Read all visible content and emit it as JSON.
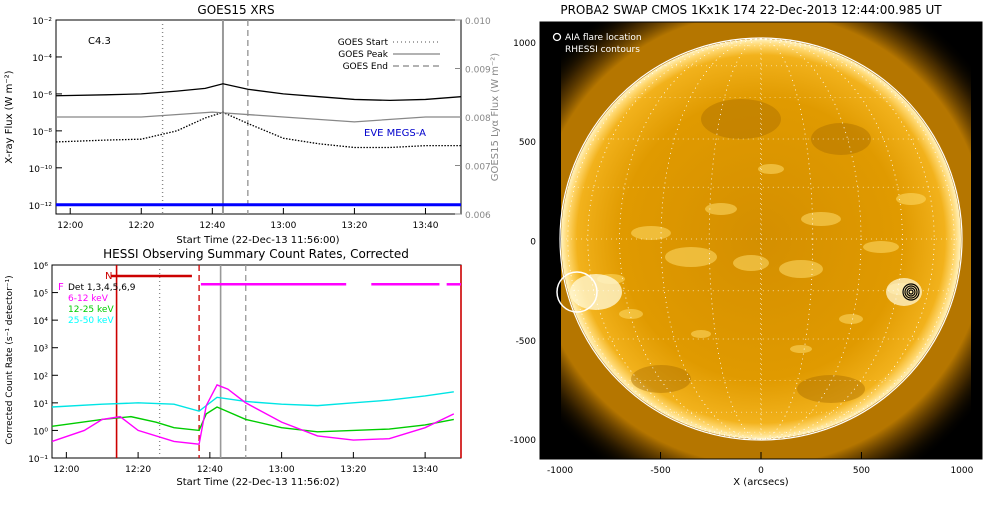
{
  "chart_data": [
    {
      "type": "line",
      "title": "GOES15 XRS",
      "xlabel": "Start Time (22-Dec-13 11:56:00)",
      "ylabel": "X-ray Flux (W m⁻²)",
      "ylabel2": "GOES15 Lyα Flux (W m⁻²)",
      "annotation": "C4.3",
      "x_ticks": [
        "12:00",
        "12:20",
        "12:40",
        "13:00",
        "13:20",
        "13:40"
      ],
      "y_ticks": [
        "10⁻²",
        "10⁻⁴",
        "10⁻⁶",
        "10⁻⁸",
        "10⁻¹⁰",
        "10⁻¹²"
      ],
      "y2_ticks": [
        "0.010",
        "0.009",
        "0.008",
        "0.007",
        "0.006"
      ],
      "x_range_minutes_after_1200": [
        -4,
        110
      ],
      "y_log_range": [
        -12.5,
        -2
      ],
      "y2_range": [
        0.006,
        0.01
      ],
      "legend_placement": "top-right",
      "legend": [
        {
          "label": "GOES Start",
          "style": "dotted",
          "color": "#888888",
          "time": "12:26"
        },
        {
          "label": "GOES Peak",
          "style": "solid",
          "color": "#999999",
          "time": "12:43"
        },
        {
          "label": "GOES End",
          "style": "dashed",
          "color": "#999999",
          "time": "12:50"
        }
      ],
      "series_label_eve": "EVE MEGS-A",
      "series": [
        {
          "color": "#000000",
          "x": [
            -4,
            10,
            20,
            30,
            38,
            43,
            50,
            60,
            70,
            80,
            90,
            100,
            110
          ],
          "log_y": [
            -6.1,
            -6.05,
            -6.0,
            -5.85,
            -5.7,
            -5.45,
            -5.75,
            -6.0,
            -6.15,
            -6.3,
            -6.35,
            -6.3,
            -6.15
          ]
        },
        {
          "color": "#000000",
          "dotted": true,
          "x": [
            -4,
            10,
            20,
            30,
            38,
            43,
            50,
            60,
            70,
            80,
            90,
            100,
            110
          ],
          "log_y": [
            -8.6,
            -8.5,
            -8.45,
            -8.0,
            -7.3,
            -7.0,
            -7.6,
            -8.4,
            -8.7,
            -8.9,
            -8.9,
            -8.8,
            -8.8
          ]
        },
        {
          "color": "#888888",
          "x": [
            -4,
            20,
            40,
            60,
            80,
            100,
            110
          ],
          "y2": [
            0.008,
            0.008,
            0.0081,
            0.008,
            0.0079,
            0.008,
            0.008
          ]
        },
        {
          "color": "#0000ff",
          "x": [
            -4,
            110
          ],
          "log_y": [
            -12,
            -12
          ]
        }
      ]
    },
    {
      "type": "line",
      "title": "HESSI Observing Summary Count Rates, Corrected",
      "xlabel": "Start Time (22-Dec-13 11:56:02)",
      "ylabel": "Corrected Count Rate (s⁻¹ detector⁻¹)",
      "x_ticks": [
        "12:00",
        "12:20",
        "12:40",
        "13:00",
        "13:20",
        "13:40"
      ],
      "y_ticks": [
        "10⁶",
        "10⁵",
        "10⁴",
        "10³",
        "10²",
        "10¹",
        "10⁰",
        "10⁻¹"
      ],
      "x_range_minutes_after_1200": [
        -4,
        110
      ],
      "y_log_range": [
        -1,
        6
      ],
      "flags": {
        "F_label": "F",
        "N_label": "N"
      },
      "legend": [
        {
          "label": "Det 1,3,4,5,6,9",
          "color": "#000000"
        },
        {
          "label": "6-12 keV",
          "color": "#ff00ff"
        },
        {
          "label": "12-25 keV",
          "color": "#00cc00"
        },
        {
          "label": "25-50 keV",
          "color": "#00ffff"
        }
      ],
      "series": [
        {
          "name": "25-50 keV",
          "color": "#00e5e5",
          "x": [
            -4,
            10,
            20,
            30,
            37,
            42,
            50,
            60,
            70,
            80,
            90,
            100,
            108
          ],
          "log_y": [
            0.85,
            0.95,
            1.0,
            0.95,
            0.7,
            1.2,
            1.05,
            0.95,
            0.9,
            1.0,
            1.1,
            1.25,
            1.4
          ]
        },
        {
          "name": "12-25 keV",
          "color": "#00cc00",
          "x": [
            -4,
            10,
            18,
            25,
            30,
            37,
            39,
            42,
            50,
            60,
            70,
            80,
            90,
            100,
            108
          ],
          "log_y": [
            0.15,
            0.4,
            0.5,
            0.3,
            0.1,
            0.0,
            0.6,
            0.85,
            0.4,
            0.1,
            -0.05,
            0.0,
            0.05,
            0.2,
            0.4
          ]
        },
        {
          "name": "6-12 keV",
          "color": "#ff00ff",
          "x": [
            -4,
            5,
            10,
            15,
            20,
            30,
            37,
            39,
            42,
            45,
            50,
            60,
            70,
            80,
            90,
            100,
            108
          ],
          "log_y": [
            -0.4,
            0.0,
            0.4,
            0.5,
            0.0,
            -0.4,
            -0.5,
            0.9,
            1.65,
            1.5,
            1.0,
            0.3,
            -0.2,
            -0.35,
            -0.3,
            0.1,
            0.6
          ]
        }
      ],
      "flag_bars": [
        {
          "color": "#ff00ff",
          "x": [
            37.5,
            78
          ],
          "log_y": 5.3
        },
        {
          "color": "#ff00ff",
          "x": [
            85,
            104
          ],
          "log_y": 5.3
        },
        {
          "color": "#ff00ff",
          "x": [
            106,
            110
          ],
          "log_y": 5.3
        },
        {
          "color": "#cc0000",
          "x": [
            12.5,
            35
          ],
          "log_y": 5.6
        }
      ],
      "vlines": [
        {
          "time": 14,
          "color": "#cc0000",
          "style": "solid"
        },
        {
          "time": 26,
          "color": "#888888",
          "style": "dotted"
        },
        {
          "time": 37,
          "color": "#cc0000",
          "style": "dashed"
        },
        {
          "time": 43,
          "color": "#999999",
          "style": "solid"
        },
        {
          "time": 50,
          "color": "#999999",
          "style": "dashed"
        },
        {
          "time": 110,
          "color": "#cc0000",
          "style": "solid"
        }
      ]
    },
    {
      "type": "image",
      "title": "PROBA2 SWAP CMOS 1Kx1K 174 22-Dec-2013 12:44:00.985 UT",
      "xlabel": "X (arcsecs)",
      "x_ticks": [
        "-1000",
        "-500",
        "0",
        "500",
        "1000"
      ],
      "y_ticks": [
        "1000",
        "500",
        "0",
        "-500",
        "-1000"
      ],
      "axis_range_arcsec": [
        -1100,
        1100
      ],
      "legend_placement": "top-left",
      "legend": [
        {
          "label": "AIA flare location",
          "color": "#ffffff"
        },
        {
          "label": "RHESSI contours",
          "color": "#000000"
        }
      ],
      "colors": {
        "sun": "#f0a800",
        "background": "#000000"
      }
    }
  ]
}
